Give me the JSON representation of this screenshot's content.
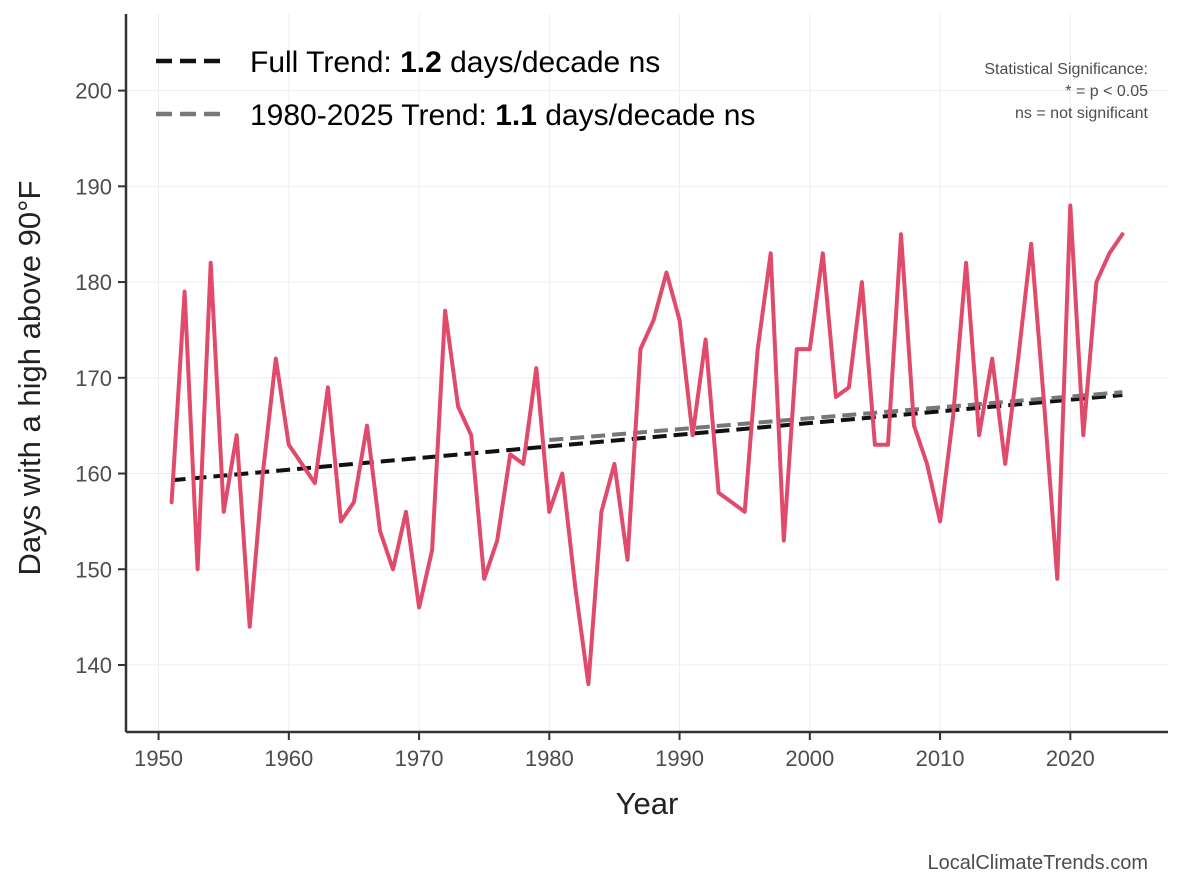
{
  "chart_data": {
    "type": "line",
    "xlabel": "Year",
    "ylabel": "Days with a high above 90°F",
    "xlim": [
      1947.5,
      2027.5
    ],
    "ylim": [
      133,
      208
    ],
    "x_ticks": [
      1950,
      1960,
      1970,
      1980,
      1990,
      2000,
      2010,
      2020
    ],
    "y_ticks": [
      140,
      150,
      160,
      170,
      180,
      190,
      200
    ],
    "grid": true,
    "series": [
      {
        "color": "#e04a6b",
        "x": [
          1951,
          1952,
          1953,
          1954,
          1955,
          1956,
          1957,
          1958,
          1959,
          1960,
          1961,
          1962,
          1963,
          1964,
          1965,
          1966,
          1967,
          1968,
          1969,
          1970,
          1971,
          1972,
          1973,
          1974,
          1975,
          1976,
          1977,
          1978,
          1979,
          1980,
          1981,
          1982,
          1983,
          1984,
          1985,
          1986,
          1987,
          1988,
          1989,
          1990,
          1991,
          1992,
          1993,
          1994,
          1995,
          1996,
          1997,
          1998,
          1999,
          2000,
          2001,
          2002,
          2003,
          2004,
          2005,
          2006,
          2007,
          2008,
          2009,
          2010,
          2011,
          2012,
          2013,
          2014,
          2015,
          2016,
          2017,
          2018,
          2019,
          2020,
          2021,
          2022,
          2023,
          2024
        ],
        "y": [
          157,
          179,
          150,
          182,
          156,
          164,
          144,
          160,
          172,
          163,
          161,
          159,
          169,
          155,
          157,
          165,
          154,
          150,
          156,
          146,
          152,
          177,
          167,
          164,
          149,
          153,
          162,
          161,
          171,
          156,
          160,
          148,
          138,
          156,
          161,
          151,
          173,
          176,
          181,
          176,
          164,
          174,
          158,
          157,
          156,
          173,
          183,
          153,
          173,
          173,
          183,
          168,
          169,
          180,
          163,
          163,
          185,
          165,
          161,
          155,
          166,
          182,
          164,
          172,
          161,
          172,
          184,
          167,
          149,
          188,
          164,
          180,
          183,
          185
        ]
      }
    ],
    "trends": [
      {
        "label_prefix": "Full Trend: ",
        "label_value": "1.2",
        "label_suffix": " days/decade ns",
        "color": "#111111",
        "x": [
          1951,
          2024
        ],
        "y": [
          159.3,
          168.2
        ]
      },
      {
        "label_prefix": "1980-2025 Trend: ",
        "label_value": "1.1",
        "label_suffix": " days/decade ns",
        "color": "#777777",
        "x": [
          1980,
          2024
        ],
        "y": [
          163.5,
          168.5
        ]
      }
    ],
    "legend_position": "top-left",
    "annotation": [
      "Statistical Significance:",
      "* = p < 0.05",
      "ns = not significant"
    ],
    "credit": "LocalClimateTrends.com"
  }
}
